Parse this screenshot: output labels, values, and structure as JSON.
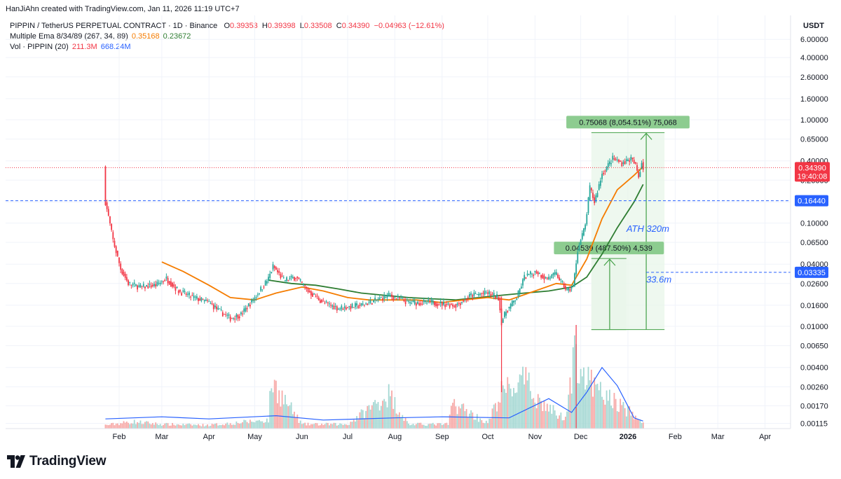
{
  "header": {
    "watermark": "HanJiAhn created with TradingView.com, Jan 11, 2026 11:19 UTC+7"
  },
  "legend": {
    "symbol": "PIPPIN / TetherUS PERPETUAL CONTRACT · 1D · Binance",
    "open_label": "O",
    "open": "0.39353",
    "high_label": "H",
    "high": "0.39398",
    "low_label": "L",
    "low": "0.33508",
    "close_label": "C",
    "close": "0.34390",
    "change": "−0.04963 (−12.61%)",
    "ema_label": "Multiple Ema 8/34/89 (267, 34, 89)",
    "ema_34": "0.35168",
    "ema_89": "0.23672",
    "vol_label": "Vol · PIPPIN (20)",
    "vol_value": "211.3M",
    "vol_ma": "668.24M"
  },
  "scale_currency": "USDT",
  "footer": {
    "brand": "TradingView"
  },
  "colors": {
    "up": "#26a69a",
    "down": "#f23645",
    "ema_short": "#f57c00",
    "ema_long": "#2e7d32",
    "vol_ma": "#2962ff",
    "hline": "#2962ff",
    "box_fill": "#e8f5e9",
    "box_stroke": "#43a047"
  },
  "chart_data": {
    "type": "candlestick",
    "scale": "log",
    "ylim": [
      0.00098,
      7.3
    ],
    "y_ticks": [
      "6.00000",
      "4.00000",
      "2.60000",
      "1.60000",
      "1.00000",
      "0.65000",
      "0.40000",
      "0.26000",
      "0.16000",
      "0.10000",
      "0.06500",
      "0.04000",
      "0.02600",
      "0.01600",
      "0.01000",
      "0.00650",
      "0.00400",
      "0.00260",
      "0.00170",
      "0.00115"
    ],
    "x_ticks": [
      {
        "label": "Feb",
        "date": "2025-02-01"
      },
      {
        "label": "Mar",
        "date": "2025-03-01"
      },
      {
        "label": "Apr",
        "date": "2025-04-01"
      },
      {
        "label": "May",
        "date": "2025-05-01"
      },
      {
        "label": "Jun",
        "date": "2025-06-01"
      },
      {
        "label": "Jul",
        "date": "2025-07-01"
      },
      {
        "label": "Aug",
        "date": "2025-08-01"
      },
      {
        "label": "Sep",
        "date": "2025-09-01"
      },
      {
        "label": "Oct",
        "date": "2025-10-01"
      },
      {
        "label": "Nov",
        "date": "2025-11-01"
      },
      {
        "label": "Dec",
        "date": "2025-12-01"
      },
      {
        "label": "2026",
        "date": "2026-01-01",
        "bold": true
      },
      {
        "label": "Feb",
        "date": "2026-02-01"
      },
      {
        "label": "Mar",
        "date": "2026-03-01"
      },
      {
        "label": "Apr",
        "date": "2026-04-01"
      }
    ],
    "price_path": [
      [
        "2025-01-23",
        0.16
      ],
      [
        "2025-01-25",
        0.115
      ],
      [
        "2025-01-28",
        0.068
      ],
      [
        "2025-02-02",
        0.036
      ],
      [
        "2025-02-07",
        0.026
      ],
      [
        "2025-02-15",
        0.024
      ],
      [
        "2025-02-25",
        0.025
      ],
      [
        "2025-03-04",
        0.029
      ],
      [
        "2025-03-12",
        0.022
      ],
      [
        "2025-03-22",
        0.019
      ],
      [
        "2025-04-01",
        0.017
      ],
      [
        "2025-04-08",
        0.014
      ],
      [
        "2025-04-15",
        0.012
      ],
      [
        "2025-04-22",
        0.013
      ],
      [
        "2025-05-01",
        0.019
      ],
      [
        "2025-05-10",
        0.029
      ],
      [
        "2025-05-13",
        0.038
      ],
      [
        "2025-05-20",
        0.028
      ],
      [
        "2025-05-28",
        0.03
      ],
      [
        "2025-06-05",
        0.022
      ],
      [
        "2025-06-15",
        0.017
      ],
      [
        "2025-06-25",
        0.015
      ],
      [
        "2025-07-10",
        0.016
      ],
      [
        "2025-07-20",
        0.018
      ],
      [
        "2025-07-28",
        0.02
      ],
      [
        "2025-08-10",
        0.017
      ],
      [
        "2025-08-25",
        0.017
      ],
      [
        "2025-09-10",
        0.016
      ],
      [
        "2025-09-20",
        0.02
      ],
      [
        "2025-10-01",
        0.021
      ],
      [
        "2025-10-08",
        0.019
      ],
      [
        "2025-10-10",
        0.011
      ],
      [
        "2025-10-13",
        0.014
      ],
      [
        "2025-10-20",
        0.019
      ],
      [
        "2025-10-25",
        0.03
      ],
      [
        "2025-11-02",
        0.034
      ],
      [
        "2025-11-08",
        0.029
      ],
      [
        "2025-11-15",
        0.032
      ],
      [
        "2025-11-22",
        0.022
      ],
      [
        "2025-11-26",
        0.024
      ],
      [
        "2025-11-29",
        0.055
      ],
      [
        "2025-12-04",
        0.095
      ],
      [
        "2025-12-07",
        0.22
      ],
      [
        "2025-12-10",
        0.16
      ],
      [
        "2025-12-15",
        0.3
      ],
      [
        "2025-12-22",
        0.42
      ],
      [
        "2025-12-28",
        0.38
      ],
      [
        "2026-01-03",
        0.42
      ],
      [
        "2026-01-06",
        0.36
      ],
      [
        "2026-01-08",
        0.28
      ],
      [
        "2026-01-10",
        0.39
      ],
      [
        "2026-01-11",
        0.3439
      ]
    ],
    "ema_34": [
      [
        "2025-03-01",
        0.042
      ],
      [
        "2025-03-15",
        0.034
      ],
      [
        "2025-04-01",
        0.025
      ],
      [
        "2025-04-15",
        0.019
      ],
      [
        "2025-05-01",
        0.018
      ],
      [
        "2025-05-15",
        0.021
      ],
      [
        "2025-06-01",
        0.024
      ],
      [
        "2025-06-15",
        0.022
      ],
      [
        "2025-07-01",
        0.019
      ],
      [
        "2025-07-15",
        0.018
      ],
      [
        "2025-08-01",
        0.018
      ],
      [
        "2025-08-15",
        0.018
      ],
      [
        "2025-09-01",
        0.017
      ],
      [
        "2025-09-15",
        0.018
      ],
      [
        "2025-10-01",
        0.019
      ],
      [
        "2025-10-15",
        0.018
      ],
      [
        "2025-11-01",
        0.022
      ],
      [
        "2025-11-15",
        0.026
      ],
      [
        "2025-11-25",
        0.025
      ],
      [
        "2025-12-05",
        0.045
      ],
      [
        "2025-12-15",
        0.11
      ],
      [
        "2025-12-25",
        0.21
      ],
      [
        "2026-01-05",
        0.29
      ],
      [
        "2026-01-11",
        0.35168
      ]
    ],
    "ema_89": [
      [
        "2025-05-10",
        0.028
      ],
      [
        "2025-05-25",
        0.026
      ],
      [
        "2025-06-10",
        0.025
      ],
      [
        "2025-06-25",
        0.023
      ],
      [
        "2025-07-10",
        0.021
      ],
      [
        "2025-07-25",
        0.02
      ],
      [
        "2025-08-10",
        0.019
      ],
      [
        "2025-08-25",
        0.0185
      ],
      [
        "2025-09-10",
        0.018
      ],
      [
        "2025-09-25",
        0.019
      ],
      [
        "2025-10-10",
        0.02
      ],
      [
        "2025-10-25",
        0.021
      ],
      [
        "2025-11-10",
        0.022
      ],
      [
        "2025-11-25",
        0.024
      ],
      [
        "2025-12-05",
        0.03
      ],
      [
        "2025-12-15",
        0.05
      ],
      [
        "2025-12-25",
        0.09
      ],
      [
        "2026-01-05",
        0.16
      ],
      [
        "2026-01-11",
        0.23672
      ]
    ],
    "volume_path": [
      [
        "2025-01-23",
        0.04
      ],
      [
        "2025-02-10",
        0.08
      ],
      [
        "2025-03-01",
        0.05
      ],
      [
        "2025-04-01",
        0.04
      ],
      [
        "2025-05-10",
        0.1
      ],
      [
        "2025-05-12",
        0.55
      ],
      [
        "2025-06-01",
        0.05
      ],
      [
        "2025-07-01",
        0.05
      ],
      [
        "2025-07-28",
        0.4
      ],
      [
        "2025-08-10",
        0.05
      ],
      [
        "2025-09-05",
        0.05
      ],
      [
        "2025-09-08",
        0.3
      ],
      [
        "2025-10-01",
        0.06
      ],
      [
        "2025-10-10",
        0.42
      ],
      [
        "2025-10-25",
        0.55
      ],
      [
        "2025-11-05",
        0.3
      ],
      [
        "2025-11-20",
        0.12
      ],
      [
        "2025-11-28",
        0.9
      ],
      [
        "2025-12-05",
        0.55
      ],
      [
        "2025-12-15",
        0.4
      ],
      [
        "2025-12-25",
        0.3
      ],
      [
        "2026-01-05",
        0.15
      ],
      [
        "2026-01-11",
        0.06
      ]
    ],
    "volume_ma_path": [
      [
        "2025-01-23",
        0.09
      ],
      [
        "2025-03-01",
        0.11
      ],
      [
        "2025-04-01",
        0.09
      ],
      [
        "2025-05-15",
        0.12
      ],
      [
        "2025-06-15",
        0.08
      ],
      [
        "2025-08-01",
        0.1
      ],
      [
        "2025-09-01",
        0.11
      ],
      [
        "2025-10-15",
        0.1
      ],
      [
        "2025-11-10",
        0.28
      ],
      [
        "2025-11-25",
        0.15
      ],
      [
        "2025-12-05",
        0.34
      ],
      [
        "2025-12-15",
        0.57
      ],
      [
        "2025-12-25",
        0.4
      ],
      [
        "2026-01-05",
        0.1
      ],
      [
        "2026-01-11",
        0.07
      ]
    ],
    "price_levels": [
      {
        "label": "0.16440",
        "value": 0.1644,
        "style": "dashed"
      },
      {
        "label": "0.03335",
        "value": 0.03335,
        "style": "dashed"
      }
    ],
    "last_price": {
      "label": "0.34390",
      "countdown": "19:40:08",
      "value": 0.3439
    },
    "measure_boxes": [
      {
        "from_date": "2025-12-08",
        "to_date": "2026-01-25",
        "from_value": 0.0093,
        "to_value": 0.75068,
        "label": "0.75068 (8,054.51%) 75,068",
        "arrow_date": "2026-01-13"
      },
      {
        "from_date": "2025-12-08",
        "to_date": "2025-12-31",
        "from_value": 0.0093,
        "to_value": 0.04539,
        "label": "0.04539 (487.50%) 4,539",
        "arrow_date": "2025-12-20"
      }
    ],
    "annotations": [
      {
        "text": "ATH 320m",
        "date": "2025-12-31",
        "value": 0.0825
      },
      {
        "text": "33.6m",
        "date": "2026-01-13",
        "value": 0.0265
      }
    ]
  }
}
